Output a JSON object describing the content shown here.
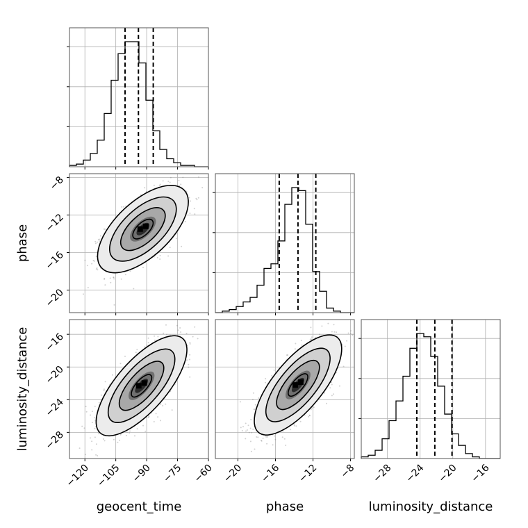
{
  "chart_data": {
    "type": "corner",
    "grid": true,
    "parameters": [
      {
        "name": "geocent_time",
        "label": "geocent_time",
        "range": [
          -127.5,
          -60
        ],
        "ticks": [
          -120,
          -105,
          -90,
          -75,
          -60
        ],
        "tick_labels": [
          "−120",
          "−105",
          "−90",
          "−75",
          "−60"
        ],
        "quantiles": [
          -100.5,
          -94,
          -86.8
        ],
        "histogram": {
          "edges_start": -127.5,
          "bin_width": 3.375,
          "counts": [
            1,
            2,
            5,
            10,
            20,
            40,
            65,
            85,
            94,
            94,
            78,
            50,
            27,
            13,
            6,
            3,
            1,
            1,
            0,
            0
          ]
        }
      },
      {
        "name": "phase",
        "label": "phase",
        "range": [
          -22.4,
          -7.6
        ],
        "ticks": [
          -20,
          -16,
          -12,
          -8
        ],
        "tick_labels": [
          "−20",
          "−16",
          "−12",
          "−8"
        ],
        "quantiles": [
          -15.6,
          -13.6,
          -11.7
        ],
        "histogram": {
          "edges_start": -22.4,
          "bin_width": 0.74,
          "counts": [
            0,
            1,
            2,
            4,
            7,
            10,
            18,
            29,
            32,
            47,
            71,
            82,
            80,
            58,
            27,
            14,
            3,
            1,
            0,
            0
          ]
        }
      },
      {
        "name": "luminosity_distance",
        "label": "luminosity_distance",
        "range": [
          -31.2,
          -14.2
        ],
        "ticks": [
          -28,
          -24,
          -20,
          -16
        ],
        "tick_labels": [
          "−28",
          "−24",
          "−20",
          "−16"
        ],
        "quantiles": [
          -24.4,
          -22.2,
          -20.1
        ],
        "histogram": {
          "edges_start": -31.2,
          "bin_width": 0.85,
          "counts": [
            1,
            2,
            5,
            12,
            23,
            35,
            50,
            67,
            76,
            74,
            62,
            44,
            27,
            15,
            8,
            3,
            1,
            0,
            0,
            0
          ]
        }
      }
    ],
    "pairs": [
      {
        "x": "geocent_time",
        "y": "phase",
        "mean": [
          -91.8,
          -13.5
        ],
        "sd": [
          9.0,
          1.9
        ],
        "corr": 0.62
      },
      {
        "x": "geocent_time",
        "y": "luminosity_distance",
        "mean": [
          -92.5,
          -22.3
        ],
        "sd": [
          9.0,
          2.5
        ],
        "corr": 0.72
      },
      {
        "x": "phase",
        "y": "luminosity_distance",
        "mean": [
          -13.6,
          -22.2
        ],
        "sd": [
          1.9,
          2.5
        ],
        "corr": 0.72
      }
    ]
  }
}
